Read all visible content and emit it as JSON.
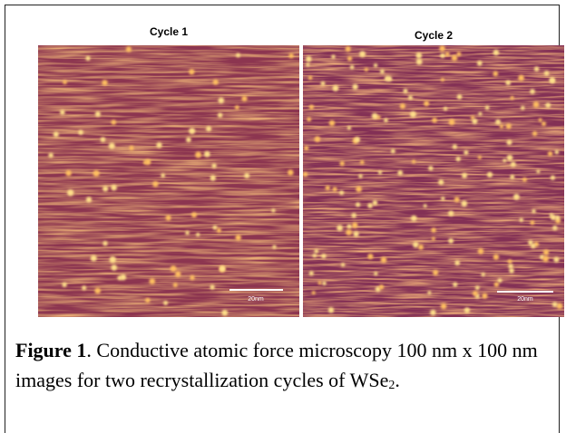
{
  "figure": {
    "panels": [
      {
        "title": "Cycle 1",
        "scale_bar": "20nm"
      },
      {
        "title": "Cycle 2",
        "scale_bar": "20nm"
      }
    ],
    "caption": {
      "label": "Figure 1",
      "text": ". Conductive atomic force microscopy 100 nm x 100 nm images for two recrystallization cycles of WSe",
      "subscript": "2",
      "end": "."
    }
  }
}
